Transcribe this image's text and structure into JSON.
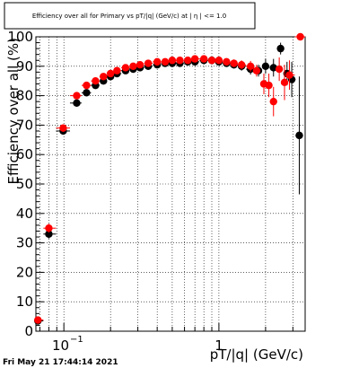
{
  "chart_data": {
    "type": "scatter",
    "title": "Efficiency over all for Primary vs pT/|q| (GeV/c) at | η | <= 1.0",
    "xlabel": "pT/|q| (GeV/c)",
    "ylabel": "Efficiency over all (%)",
    "xscale": "log",
    "xlim": [
      0.066,
      3.6
    ],
    "ylim": [
      0,
      100
    ],
    "x_major_ticks": [
      0.1,
      1
    ],
    "x_tick_labels": [
      "10",
      "−1",
      "1"
    ],
    "y_ticks": [
      0,
      10,
      20,
      30,
      40,
      50,
      60,
      70,
      80,
      90,
      100
    ],
    "y_tick_labels": [
      "0",
      "10",
      "20",
      "30",
      "40",
      "50",
      "60",
      "70",
      "80",
      "90",
      "100"
    ],
    "grid": true,
    "series": [
      {
        "color": "#000000",
        "points": [
          {
            "x": 0.068,
            "y": 3.5,
            "err": 0.8
          },
          {
            "x": 0.08,
            "y": 33,
            "err": 1.5
          },
          {
            "x": 0.099,
            "y": 68,
            "err": 1.2
          },
          {
            "x": 0.121,
            "y": 77.5,
            "err": 1.0
          },
          {
            "x": 0.14,
            "y": 81,
            "err": 1.0
          },
          {
            "x": 0.16,
            "y": 83.5,
            "err": 1.0
          },
          {
            "x": 0.18,
            "y": 85,
            "err": 0.9
          },
          {
            "x": 0.2,
            "y": 86.5,
            "err": 0.9
          },
          {
            "x": 0.22,
            "y": 87.5,
            "err": 0.9
          },
          {
            "x": 0.25,
            "y": 88.5,
            "err": 0.8
          },
          {
            "x": 0.28,
            "y": 89,
            "err": 0.8
          },
          {
            "x": 0.31,
            "y": 89.5,
            "err": 0.8
          },
          {
            "x": 0.35,
            "y": 90,
            "err": 0.8
          },
          {
            "x": 0.4,
            "y": 90.5,
            "err": 0.8
          },
          {
            "x": 0.45,
            "y": 91,
            "err": 0.8
          },
          {
            "x": 0.5,
            "y": 91,
            "err": 0.8
          },
          {
            "x": 0.56,
            "y": 91,
            "err": 0.8
          },
          {
            "x": 0.63,
            "y": 91.5,
            "err": 0.8
          },
          {
            "x": 0.7,
            "y": 91.5,
            "err": 0.8
          },
          {
            "x": 0.8,
            "y": 92,
            "err": 0.9
          },
          {
            "x": 0.9,
            "y": 92,
            "err": 0.9
          },
          {
            "x": 1.0,
            "y": 91.5,
            "err": 1.0
          },
          {
            "x": 1.12,
            "y": 91,
            "err": 1.2
          },
          {
            "x": 1.25,
            "y": 90.5,
            "err": 1.3
          },
          {
            "x": 1.4,
            "y": 90,
            "err": 1.5
          },
          {
            "x": 1.6,
            "y": 89,
            "err": 1.8
          },
          {
            "x": 1.8,
            "y": 88.5,
            "err": 2.0
          },
          {
            "x": 2.0,
            "y": 90,
            "err": 2.5
          },
          {
            "x": 2.25,
            "y": 89.5,
            "err": 3.0
          },
          {
            "x": 2.5,
            "y": 96,
            "err": 2.0
          },
          {
            "x": 2.75,
            "y": 87.5,
            "err": 4.0
          },
          {
            "x": 2.95,
            "y": 85.5,
            "err": 6.0
          },
          {
            "x": 3.3,
            "y": 66.5,
            "err": 20.0
          }
        ]
      },
      {
        "color": "#ff0000",
        "points": [
          {
            "x": 0.068,
            "y": 3.8,
            "err": 0.8
          },
          {
            "x": 0.08,
            "y": 35,
            "err": 1.5
          },
          {
            "x": 0.099,
            "y": 69,
            "err": 1.2
          },
          {
            "x": 0.121,
            "y": 80,
            "err": 1.0
          },
          {
            "x": 0.14,
            "y": 83.5,
            "err": 1.0
          },
          {
            "x": 0.16,
            "y": 85,
            "err": 1.0
          },
          {
            "x": 0.18,
            "y": 86.5,
            "err": 0.9
          },
          {
            "x": 0.2,
            "y": 87.5,
            "err": 0.9
          },
          {
            "x": 0.22,
            "y": 88.5,
            "err": 0.9
          },
          {
            "x": 0.25,
            "y": 89.5,
            "err": 0.8
          },
          {
            "x": 0.28,
            "y": 90,
            "err": 0.8
          },
          {
            "x": 0.31,
            "y": 90.5,
            "err": 0.8
          },
          {
            "x": 0.35,
            "y": 91,
            "err": 0.8
          },
          {
            "x": 0.4,
            "y": 91.5,
            "err": 0.8
          },
          {
            "x": 0.45,
            "y": 91.5,
            "err": 0.8
          },
          {
            "x": 0.5,
            "y": 92,
            "err": 0.8
          },
          {
            "x": 0.56,
            "y": 92,
            "err": 0.8
          },
          {
            "x": 0.63,
            "y": 92,
            "err": 0.8
          },
          {
            "x": 0.7,
            "y": 92.5,
            "err": 0.8
          },
          {
            "x": 0.8,
            "y": 92.5,
            "err": 0.9
          },
          {
            "x": 0.9,
            "y": 92,
            "err": 0.9
          },
          {
            "x": 1.0,
            "y": 92,
            "err": 1.0
          },
          {
            "x": 1.12,
            "y": 91.5,
            "err": 1.2
          },
          {
            "x": 1.25,
            "y": 91,
            "err": 1.3
          },
          {
            "x": 1.4,
            "y": 90.5,
            "err": 1.5
          },
          {
            "x": 1.6,
            "y": 90,
            "err": 1.8
          },
          {
            "x": 1.75,
            "y": 88.5,
            "err": 2.0
          },
          {
            "x": 1.95,
            "y": 84,
            "err": 3.5
          },
          {
            "x": 2.1,
            "y": 83.5,
            "err": 4.0
          },
          {
            "x": 2.25,
            "y": 78,
            "err": 5.0
          },
          {
            "x": 2.45,
            "y": 89,
            "err": 4.0
          },
          {
            "x": 2.65,
            "y": 84.5,
            "err": 6.0
          },
          {
            "x": 2.85,
            "y": 87,
            "err": 5.0
          },
          {
            "x": 3.35,
            "y": 100,
            "err": 0.5
          }
        ]
      }
    ]
  },
  "footer": {
    "timestamp": "Fri May 21 17:44:14 2021"
  }
}
